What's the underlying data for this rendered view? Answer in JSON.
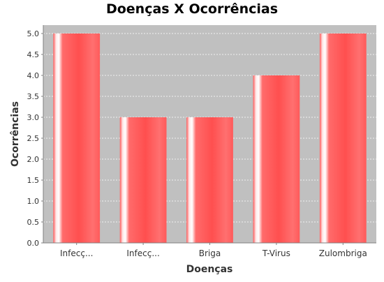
{
  "chart_data": {
    "type": "bar",
    "title": "Doenças X Ocorrências",
    "xlabel": "Doenças",
    "ylabel": "Ocorrências",
    "categories": [
      "Infecç...",
      "Infecç...",
      "Briga",
      "T-Virus",
      "Zulombriga"
    ],
    "values": [
      5.0,
      3.0,
      3.0,
      4.0,
      5.0
    ],
    "ylim": [
      0,
      5.2
    ],
    "yticks": [
      "0.0",
      "0.5",
      "1.0",
      "1.5",
      "2.0",
      "2.5",
      "3.0",
      "3.5",
      "4.0",
      "4.5",
      "5.0"
    ],
    "grid": true,
    "legend": "none"
  },
  "colors": {
    "plot_background": "#c0c0c0",
    "bar": "#ff5a5a",
    "bar_highlight": "#ffffff",
    "grid": "#ffffff",
    "axis": "#808080",
    "text": "#333333"
  }
}
